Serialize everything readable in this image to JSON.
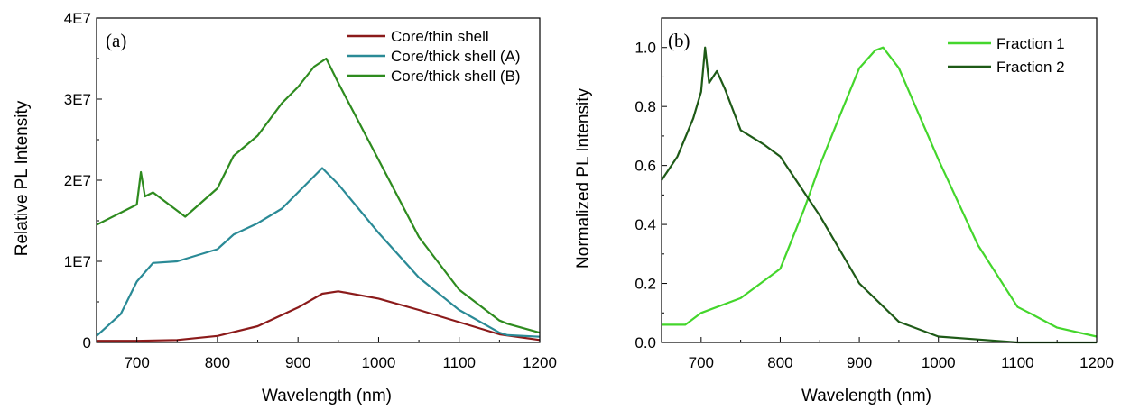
{
  "chart_data": [
    {
      "type": "line",
      "panel_label": "(a)",
      "xlabel": "Wavelength (nm)",
      "ylabel": "Relative PL Intensity",
      "xlim": [
        650,
        1200
      ],
      "ylim": [
        0,
        40000000
      ],
      "x_ticks": [
        700,
        800,
        900,
        1000,
        1100,
        1200
      ],
      "x_tick_labels": [
        "700",
        "800",
        "900",
        "1000",
        "1100",
        "1200"
      ],
      "y_ticks": [
        0,
        10000000,
        20000000,
        30000000,
        40000000
      ],
      "y_tick_labels": [
        "0",
        "1E7",
        "2E7",
        "3E7",
        "4E7"
      ],
      "legend_position": "top-right",
      "series": [
        {
          "name": "Core/thin shell",
          "color": "#8b1a1a",
          "x": [
            650,
            700,
            750,
            800,
            850,
            900,
            930,
            950,
            1000,
            1050,
            1100,
            1150,
            1200
          ],
          "y": [
            200000,
            200000,
            300000,
            800000,
            2000000,
            4300000,
            6000000,
            6300000,
            5400000,
            4000000,
            2500000,
            1000000,
            300000
          ]
        },
        {
          "name": "Core/thick shell (A)",
          "color": "#2a8a96",
          "x": [
            650,
            680,
            700,
            720,
            750,
            800,
            820,
            850,
            880,
            900,
            930,
            950,
            1000,
            1050,
            1100,
            1150,
            1160,
            1200
          ],
          "y": [
            800000,
            3500000,
            7500000,
            9800000,
            10000000,
            11500000,
            13300000,
            14700000,
            16500000,
            18500000,
            21500000,
            19500000,
            13500000,
            8000000,
            4000000,
            1200000,
            900000,
            700000
          ]
        },
        {
          "name": "Core/thick shell (B)",
          "color": "#2e8b1f",
          "x": [
            650,
            680,
            700,
            705,
            710,
            720,
            740,
            760,
            800,
            820,
            850,
            880,
            900,
            920,
            935,
            950,
            1000,
            1050,
            1100,
            1150,
            1160,
            1200
          ],
          "y": [
            14500000,
            16000000,
            17000000,
            21000000,
            18000000,
            18500000,
            17000000,
            15500000,
            19000000,
            23000000,
            25500000,
            29500000,
            31500000,
            34000000,
            35000000,
            32000000,
            22500000,
            13000000,
            6500000,
            2700000,
            2300000,
            1200000
          ]
        }
      ]
    },
    {
      "type": "line",
      "panel_label": "(b)",
      "xlabel": "Wavelength (nm)",
      "ylabel": "Normalized PL Intensity",
      "xlim": [
        650,
        1200
      ],
      "ylim": [
        0,
        1.1
      ],
      "x_ticks": [
        700,
        800,
        900,
        1000,
        1100,
        1200
      ],
      "x_tick_labels": [
        "700",
        "800",
        "900",
        "1000",
        "1100",
        "1200"
      ],
      "y_ticks": [
        0,
        0.2,
        0.4,
        0.6,
        0.8,
        1.0
      ],
      "y_tick_labels": [
        "0.0",
        "0.2",
        "0.4",
        "0.6",
        "0.8",
        "1.0"
      ],
      "legend_position": "top-right",
      "series": [
        {
          "name": "Fraction 1",
          "color": "#44d62c",
          "x": [
            650,
            680,
            700,
            750,
            800,
            830,
            850,
            880,
            900,
            920,
            930,
            950,
            1000,
            1050,
            1100,
            1115,
            1150,
            1200
          ],
          "y": [
            0.06,
            0.06,
            0.1,
            0.15,
            0.25,
            0.45,
            0.6,
            0.8,
            0.93,
            0.99,
            1.0,
            0.93,
            0.62,
            0.33,
            0.12,
            0.1,
            0.05,
            0.02
          ]
        },
        {
          "name": "Fraction 2",
          "color": "#1e5a17",
          "x": [
            650,
            670,
            690,
            700,
            705,
            710,
            720,
            730,
            750,
            780,
            800,
            820,
            850,
            900,
            950,
            1000,
            1050,
            1100,
            1150,
            1200
          ],
          "y": [
            0.55,
            0.63,
            0.76,
            0.85,
            1.0,
            0.88,
            0.92,
            0.86,
            0.72,
            0.67,
            0.63,
            0.55,
            0.43,
            0.2,
            0.07,
            0.02,
            0.01,
            0.0,
            0.0,
            0.0
          ]
        }
      ]
    }
  ]
}
